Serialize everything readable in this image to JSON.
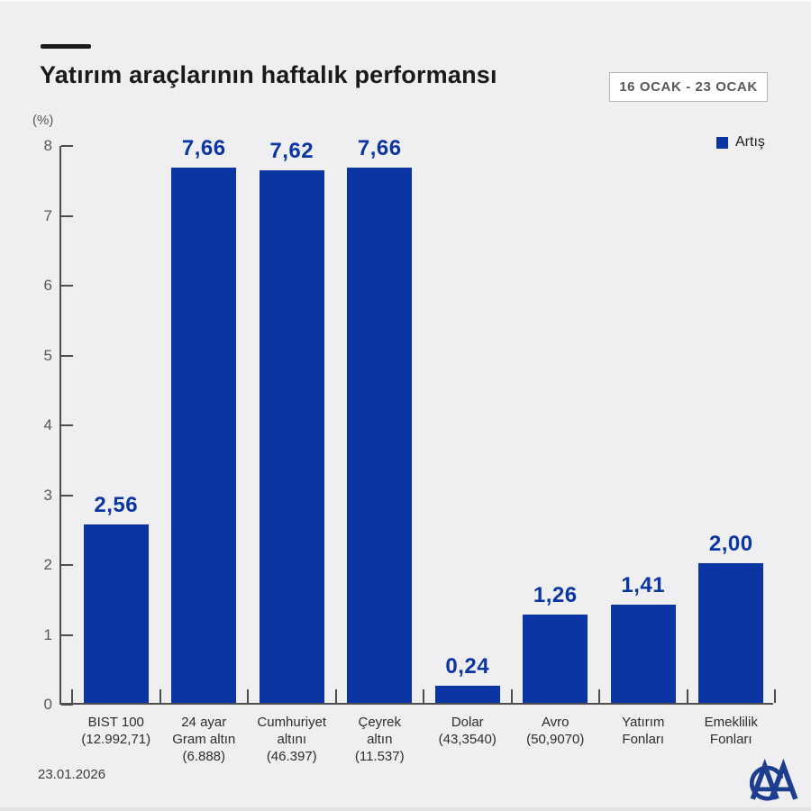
{
  "header": {
    "title": "Yatırım araçlarının haftalık performansı",
    "date_range": "16 OCAK - 23 OCAK"
  },
  "legend": {
    "artis_label": "Artış"
  },
  "footer": {
    "date": "23.01.2026",
    "logo_name": "AA"
  },
  "colors": {
    "background": "#efeff1",
    "bar": "#0a35a3",
    "axis": "#4d4d4d",
    "value_label": "#0a35a3",
    "logo": "#1d3d8f"
  },
  "chart_data": {
    "type": "bar",
    "title": "Yatırım araçlarının haftalık performansı",
    "subtitle": "16 OCAK - 23 OCAK",
    "xlabel": "",
    "ylabel": "(%)",
    "ylim": [
      0,
      8
    ],
    "y_ticks": [
      0,
      1,
      2,
      3,
      4,
      5,
      6,
      7,
      8
    ],
    "grid": false,
    "legend_entries": [
      "Artış"
    ],
    "legend_position": "top-right",
    "categories": [
      "BIST 100 (12.992,71)",
      "24 ayar Gram altın (6.888)",
      "Cumhuriyet altını (46.397)",
      "Çeyrek altın (11.537)",
      "Dolar (43,3540)",
      "Avro (50,9070)",
      "Yatırım Fonları",
      "Emeklilik Fonları"
    ],
    "category_label_lines": [
      [
        "BIST 100",
        "(12.992,71)"
      ],
      [
        "24 ayar",
        "Gram altın",
        "(6.888)"
      ],
      [
        "Cumhuriyet",
        "altını",
        "(46.397)"
      ],
      [
        "Çeyrek",
        "altın",
        "(11.537)"
      ],
      [
        "Dolar",
        "(43,3540)"
      ],
      [
        "Avro",
        "(50,9070)"
      ],
      [
        "Yatırım",
        "Fonları"
      ],
      [
        "Emeklilik",
        "Fonları"
      ]
    ],
    "values": [
      2.56,
      7.66,
      7.62,
      7.66,
      0.24,
      1.26,
      1.41,
      2.0
    ],
    "value_labels": [
      "2,56",
      "7,66",
      "7,62",
      "7,66",
      "0,24",
      "1,26",
      "1,41",
      "2,00"
    ]
  }
}
